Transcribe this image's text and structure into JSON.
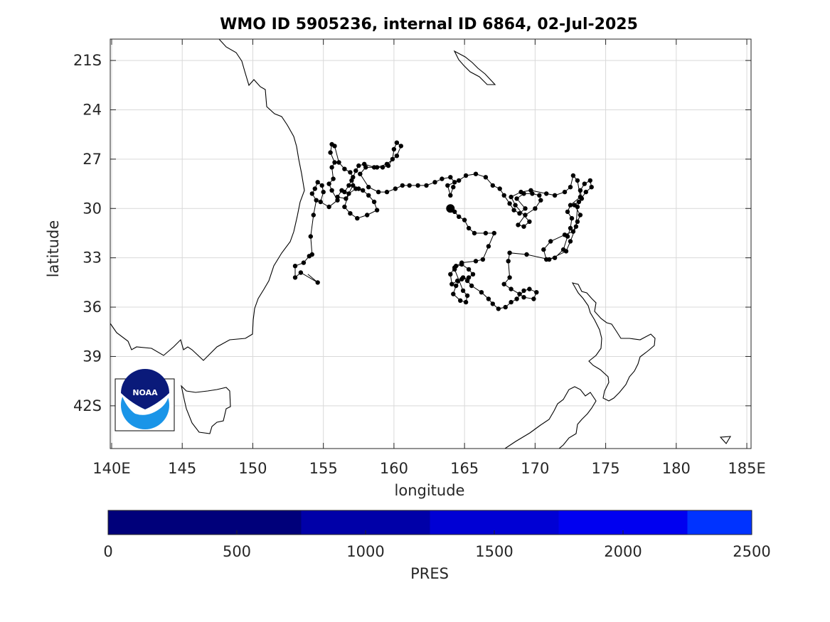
{
  "title": "WMO ID 5905236, internal ID 6864, 02-Jul-2025",
  "x_label": "longitude",
  "y_label": "latitude",
  "x_ticks": [
    "140E",
    "145",
    "150",
    "155",
    "160",
    "165",
    "170",
    "175",
    "180",
    "185E"
  ],
  "y_ticks": [
    "21S",
    "24",
    "27",
    "30",
    "33",
    "36",
    "39",
    "42S"
  ],
  "logo_text": "NOAA",
  "colorbar": {
    "label": "PRES",
    "ticks": [
      "0",
      "500",
      "1000",
      "1500",
      "2000",
      "2500"
    ],
    "range": [
      0,
      2500
    ],
    "bands": [
      {
        "from": 0,
        "to": 750,
        "color": "#00007A"
      },
      {
        "from": 750,
        "to": 1250,
        "color": "#0000A8"
      },
      {
        "from": 1250,
        "to": 1750,
        "color": "#0000D4"
      },
      {
        "from": 1750,
        "to": 2250,
        "color": "#0000F0"
      },
      {
        "from": 2250,
        "to": 2500,
        "color": "#0033FF"
      }
    ]
  },
  "chart_data": {
    "type": "scatter",
    "title": "WMO ID 5905236, internal ID 6864, 02-Jul-2025",
    "xlabel": "longitude",
    "ylabel": "latitude",
    "xlim": [
      139.9,
      185.3
    ],
    "ylim": [
      -44.6,
      -19.7
    ],
    "grid": true,
    "points": [
      [
        154.6,
        -34.5
      ],
      [
        153.4,
        -33.9
      ],
      [
        153.0,
        -34.2
      ],
      [
        153.0,
        -33.5
      ],
      [
        153.6,
        -33.3
      ],
      [
        154.0,
        -32.9
      ],
      [
        154.2,
        -32.8
      ],
      [
        154.1,
        -31.7
      ],
      [
        154.3,
        -30.4
      ],
      [
        154.5,
        -29.5
      ],
      [
        154.2,
        -29.1
      ],
      [
        154.4,
        -28.8
      ],
      [
        154.6,
        -28.4
      ],
      [
        154.9,
        -28.6
      ],
      [
        155.0,
        -29.0
      ],
      [
        154.8,
        -29.6
      ],
      [
        155.4,
        -29.9
      ],
      [
        156.0,
        -29.5
      ],
      [
        155.6,
        -28.9
      ],
      [
        155.4,
        -28.5
      ],
      [
        155.7,
        -28.2
      ],
      [
        155.6,
        -27.5
      ],
      [
        155.8,
        -27.2
      ],
      [
        155.5,
        -26.6
      ],
      [
        155.6,
        -26.1
      ],
      [
        155.8,
        -26.2
      ],
      [
        156.1,
        -27.2
      ],
      [
        156.5,
        -27.6
      ],
      [
        156.9,
        -27.8
      ],
      [
        157.1,
        -28.1
      ],
      [
        156.8,
        -28.6
      ],
      [
        156.5,
        -29.0
      ],
      [
        156.3,
        -28.9
      ],
      [
        156.0,
        -29.3
      ],
      [
        156.6,
        -29.4
      ],
      [
        157.1,
        -28.6
      ],
      [
        157.5,
        -28.8
      ],
      [
        157.8,
        -28.9
      ],
      [
        158.2,
        -29.2
      ],
      [
        158.6,
        -29.6
      ],
      [
        158.8,
        -30.1
      ],
      [
        158.1,
        -30.4
      ],
      [
        157.4,
        -30.6
      ],
      [
        156.9,
        -30.3
      ],
      [
        156.5,
        -29.9
      ],
      [
        156.8,
        -29.1
      ],
      [
        157.3,
        -28.8
      ],
      [
        157.0,
        -28.3
      ],
      [
        157.3,
        -27.7
      ],
      [
        157.5,
        -27.4
      ],
      [
        157.9,
        -27.3
      ],
      [
        158.6,
        -27.5
      ],
      [
        159.2,
        -27.5
      ],
      [
        159.6,
        -27.4
      ],
      [
        159.9,
        -27.0
      ],
      [
        160.0,
        -26.4
      ],
      [
        160.2,
        -26.0
      ],
      [
        160.5,
        -26.2
      ],
      [
        160.2,
        -26.8
      ],
      [
        159.5,
        -27.3
      ],
      [
        158.8,
        -27.5
      ],
      [
        158.0,
        -27.5
      ],
      [
        157.6,
        -27.9
      ],
      [
        158.2,
        -28.7
      ],
      [
        158.9,
        -29.0
      ],
      [
        159.5,
        -29.0
      ],
      [
        160.1,
        -28.8
      ],
      [
        160.6,
        -28.6
      ],
      [
        161.1,
        -28.6
      ],
      [
        161.7,
        -28.6
      ],
      [
        162.3,
        -28.6
      ],
      [
        162.9,
        -28.4
      ],
      [
        163.4,
        -28.2
      ],
      [
        164.0,
        -28.1
      ],
      [
        164.3,
        -28.4
      ],
      [
        164.2,
        -28.7
      ],
      [
        164.0,
        -29.2
      ],
      [
        163.8,
        -28.6
      ],
      [
        164.6,
        -28.3
      ],
      [
        165.1,
        -28.0
      ],
      [
        165.8,
        -27.9
      ],
      [
        166.5,
        -28.1
      ],
      [
        167.0,
        -28.6
      ],
      [
        167.5,
        -28.8
      ],
      [
        167.8,
        -29.2
      ],
      [
        168.2,
        -29.7
      ],
      [
        168.5,
        -30.1
      ],
      [
        168.9,
        -30.3
      ],
      [
        169.3,
        -30.0
      ],
      [
        168.7,
        -29.4
      ],
      [
        169.2,
        -29.1
      ],
      [
        169.8,
        -29.1
      ],
      [
        170.3,
        -29.2
      ],
      [
        170.4,
        -29.5
      ],
      [
        170.0,
        -30.0
      ],
      [
        169.3,
        -30.4
      ],
      [
        168.8,
        -31.0
      ],
      [
        169.2,
        -31.1
      ],
      [
        169.6,
        -30.8
      ],
      [
        168.6,
        -29.8
      ],
      [
        168.3,
        -29.3
      ],
      [
        169.0,
        -29.0
      ],
      [
        169.7,
        -28.9
      ],
      [
        170.8,
        -29.1
      ],
      [
        171.4,
        -29.2
      ],
      [
        172.1,
        -29.0
      ],
      [
        172.5,
        -28.7
      ],
      [
        172.7,
        -28.0
      ],
      [
        173.0,
        -28.3
      ],
      [
        173.2,
        -29.3
      ],
      [
        172.5,
        -29.8
      ],
      [
        172.3,
        -30.2
      ],
      [
        172.6,
        -30.6
      ],
      [
        172.5,
        -31.2
      ],
      [
        172.3,
        -31.7
      ],
      [
        172.0,
        -32.5
      ],
      [
        171.4,
        -33.0
      ],
      [
        170.8,
        -33.1
      ],
      [
        170.6,
        -32.5
      ],
      [
        171.1,
        -32.0
      ],
      [
        172.1,
        -31.6
      ],
      [
        172.7,
        -31.4
      ],
      [
        173.0,
        -30.8
      ],
      [
        173.2,
        -30.4
      ],
      [
        172.8,
        -29.8
      ],
      [
        173.3,
        -29.4
      ],
      [
        173.2,
        -28.9
      ],
      [
        173.5,
        -28.5
      ],
      [
        173.9,
        -28.3
      ],
      [
        174.0,
        -28.7
      ],
      [
        173.6,
        -29.0
      ],
      [
        173.1,
        -29.6
      ],
      [
        173.0,
        -29.9
      ],
      [
        172.9,
        -31.1
      ],
      [
        172.5,
        -32.0
      ],
      [
        172.2,
        -32.6
      ],
      [
        171.0,
        -33.1
      ],
      [
        169.4,
        -32.8
      ],
      [
        168.2,
        -32.7
      ],
      [
        168.1,
        -33.2
      ],
      [
        168.2,
        -34.2
      ],
      [
        167.8,
        -34.6
      ],
      [
        168.3,
        -34.9
      ],
      [
        168.9,
        -35.2
      ],
      [
        169.2,
        -35.4
      ],
      [
        169.9,
        -35.5
      ],
      [
        170.1,
        -35.1
      ],
      [
        169.6,
        -34.9
      ],
      [
        169.2,
        -35.0
      ],
      [
        168.7,
        -35.5
      ],
      [
        168.3,
        -35.7
      ],
      [
        167.9,
        -36.0
      ],
      [
        167.4,
        -36.1
      ],
      [
        167.0,
        -35.8
      ],
      [
        166.7,
        -35.5
      ],
      [
        166.2,
        -35.1
      ],
      [
        165.5,
        -34.7
      ],
      [
        165.2,
        -34.4
      ],
      [
        164.9,
        -34.2
      ],
      [
        164.5,
        -34.4
      ],
      [
        164.1,
        -34.6
      ],
      [
        164.0,
        -34.0
      ],
      [
        164.3,
        -33.6
      ],
      [
        164.8,
        -33.4
      ],
      [
        165.3,
        -33.7
      ],
      [
        165.6,
        -34.0
      ],
      [
        165.3,
        -34.2
      ],
      [
        164.8,
        -34.3
      ],
      [
        164.4,
        -34.7
      ],
      [
        164.2,
        -35.2
      ],
      [
        164.7,
        -35.6
      ],
      [
        165.1,
        -35.7
      ],
      [
        165.2,
        -35.3
      ],
      [
        164.9,
        -35.0
      ],
      [
        164.3,
        -33.7
      ],
      [
        164.4,
        -33.5
      ],
      [
        164.8,
        -33.3
      ],
      [
        165.8,
        -33.2
      ],
      [
        166.3,
        -33.1
      ],
      [
        166.7,
        -32.3
      ],
      [
        167.1,
        -31.5
      ],
      [
        166.5,
        -31.5
      ],
      [
        165.7,
        -31.5
      ],
      [
        165.3,
        -31.2
      ],
      [
        165.0,
        -30.7
      ],
      [
        164.6,
        -30.5
      ],
      [
        164.3,
        -30.2
      ],
      [
        164.0,
        -30.0
      ]
    ]
  }
}
